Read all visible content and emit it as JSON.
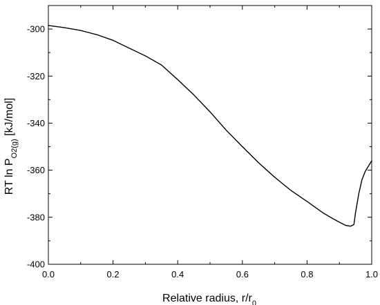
{
  "chart_data": {
    "type": "line",
    "title": "",
    "xlabel": {
      "main": "Relative radius, r/r",
      "subscript": "0"
    },
    "ylabel": {
      "prefix": "RT ln P",
      "subscript": "O2(g)",
      "suffix": " [kJ/mol]"
    },
    "xlim": [
      0.0,
      1.0
    ],
    "ylim": [
      -400,
      -290
    ],
    "x_ticks": [
      0.0,
      0.2,
      0.4,
      0.6,
      0.8,
      1.0
    ],
    "x_tick_labels": [
      "0.0",
      "0.2",
      "0.4",
      "0.6",
      "0.8",
      "1.0"
    ],
    "y_ticks": [
      -400,
      -380,
      -360,
      -340,
      -320,
      -300
    ],
    "y_tick_labels": [
      "-400",
      "-380",
      "-360",
      "-340",
      "-320",
      "-300"
    ],
    "grid": false,
    "series": [
      {
        "color": "#000000",
        "x": [
          0.0,
          0.05,
          0.1,
          0.15,
          0.2,
          0.25,
          0.3,
          0.35,
          0.4,
          0.45,
          0.5,
          0.55,
          0.6,
          0.65,
          0.7,
          0.75,
          0.8,
          0.85,
          0.88,
          0.9,
          0.92,
          0.935,
          0.945,
          0.95,
          0.96,
          0.97,
          0.98,
          1.0
        ],
        "y": [
          -298.5,
          -299.4,
          -300.6,
          -302.4,
          -304.8,
          -308.1,
          -311.4,
          -315.3,
          -321.5,
          -328.0,
          -335.2,
          -343.0,
          -350.0,
          -356.8,
          -363.0,
          -368.6,
          -373.3,
          -378.2,
          -380.6,
          -382.1,
          -383.5,
          -383.8,
          -383.1,
          -378.0,
          -370.0,
          -364.0,
          -360.5,
          -356.0
        ]
      }
    ]
  }
}
